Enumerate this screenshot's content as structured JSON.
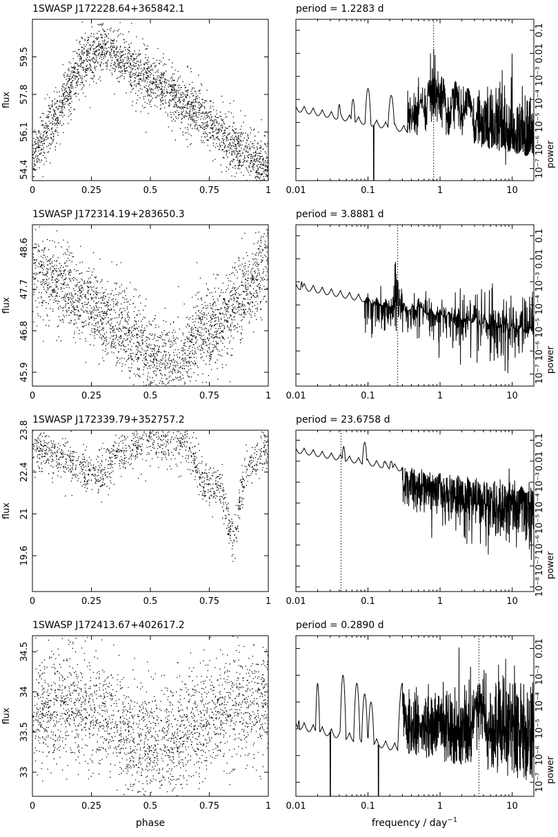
{
  "figure": {
    "xlabel_left": "phase",
    "xlabel_right_main": "frequency / day",
    "xlabel_right_sup": "−1"
  },
  "chart_data": [
    {
      "type": "scatter",
      "title": "1SWASP J172228.64+365842.1",
      "xlabel": "phase",
      "ylabel": "flux",
      "xlim": [
        0,
        1
      ],
      "ylim": [
        53.9,
        61.2
      ],
      "xticks": [
        "0",
        "0.25",
        "0.5",
        "0.75",
        "1"
      ],
      "yticks": [
        54.4,
        56.1,
        57.8,
        59.5
      ],
      "ytick_labels": [
        "54.4",
        "56.1",
        "57.8",
        "59.5"
      ],
      "profile": [
        [
          0,
          54.9
        ],
        [
          0.05,
          55.9
        ],
        [
          0.12,
          57.3
        ],
        [
          0.2,
          59.1
        ],
        [
          0.3,
          60.0
        ],
        [
          0.4,
          59.2
        ],
        [
          0.55,
          58.1
        ],
        [
          0.7,
          57.0
        ],
        [
          0.85,
          55.5
        ],
        [
          1.0,
          54.5
        ]
      ],
      "scatter_sd": 0.6,
      "n_points": 2600
    },
    {
      "type": "line",
      "title": "period =    1.2283  d",
      "xlabel": "frequency / day−1",
      "ylabel": "power",
      "xscale": "log",
      "yscale": "log",
      "xlim": [
        0.01,
        20
      ],
      "ylim": [
        3e-08,
        0.3
      ],
      "xticks": [
        "0.01",
        "0.1",
        "1",
        "10"
      ],
      "yticks": [
        1e-07,
        1e-06,
        1e-05,
        0.0001,
        0.001,
        0.01,
        0.1
      ],
      "ytick_labels": [
        "10⁻⁷",
        "10⁻⁶",
        "10⁻⁵",
        "10⁻⁴",
        "10⁻³",
        "0.01",
        "0.1"
      ],
      "peak_frequency": 0.8141,
      "peaks": [
        [
          0.04,
          6e-05
        ],
        [
          0.062,
          0.0001
        ],
        [
          0.1,
          0.0003
        ],
        [
          0.21,
          0.00015
        ],
        [
          0.55,
          0.0001
        ],
        [
          0.8141,
          0.2
        ],
        [
          1.07,
          0.001
        ],
        [
          1.63,
          0.0006
        ],
        [
          2.44,
          0.0003
        ]
      ],
      "noise": {
        "start": 0.35,
        "level_low": 2e-05,
        "level_high": 3e-06,
        "sd": 0.8
      },
      "dips": [
        0.12
      ]
    },
    {
      "type": "scatter",
      "title": "1SWASP J172314.19+283650.3",
      "xlabel": "phase",
      "ylabel": "flux",
      "xlim": [
        0,
        1
      ],
      "ylim": [
        45.6,
        49.1
      ],
      "xticks": [
        "0",
        "0.25",
        "0.5",
        "0.75",
        "1"
      ],
      "yticks": [
        45.9,
        46.8,
        47.7,
        48.6
      ],
      "ytick_labels": [
        "45.9",
        "46.8",
        "47.7",
        "48.6"
      ],
      "profile": [
        [
          0,
          48.1
        ],
        [
          0.15,
          47.7
        ],
        [
          0.3,
          47.1
        ],
        [
          0.45,
          46.5
        ],
        [
          0.55,
          46.1
        ],
        [
          0.62,
          46.0
        ],
        [
          0.7,
          46.7
        ],
        [
          0.8,
          47.0
        ],
        [
          0.9,
          47.6
        ],
        [
          1.0,
          48.3
        ]
      ],
      "scatter_sd": 0.45,
      "n_points": 2600
    },
    {
      "type": "line",
      "title": "period =    3.8881  d",
      "xlabel": "frequency / day−1",
      "ylabel": "power",
      "xscale": "log",
      "yscale": "log",
      "xlim": [
        0.01,
        20
      ],
      "ylim": [
        3e-08,
        0.3
      ],
      "xticks": [
        "0.01",
        "0.1",
        "1",
        "10"
      ],
      "yticks": [
        1e-07,
        1e-06,
        1e-05,
        0.0001,
        0.001,
        0.01,
        0.1
      ],
      "ytick_labels": [
        "10⁻⁷",
        "10⁻⁶",
        "10⁻⁵",
        "10⁻⁴",
        "10⁻³",
        "0.01",
        "0.1"
      ],
      "peak_frequency": 0.2572,
      "peaks": [
        [
          0.012,
          0.001
        ],
        [
          0.02,
          0.00015
        ],
        [
          0.03,
          0.0001
        ],
        [
          0.06,
          0.0002
        ],
        [
          0.075,
          0.0002
        ],
        [
          0.2572,
          0.1
        ],
        [
          0.51,
          0.0002
        ]
      ],
      "noise": {
        "start": 0.09,
        "level_low": 1e-05,
        "level_high": 3e-06,
        "sd": 0.8
      },
      "dips": []
    },
    {
      "type": "scatter",
      "title": "1SWASP J172339.79+352757.2",
      "xlabel": "phase",
      "ylabel": "flux",
      "xlim": [
        0,
        1
      ],
      "ylim": [
        18.4,
        23.8
      ],
      "xticks": [
        "0",
        "0.25",
        "0.5",
        "0.75",
        "1"
      ],
      "yticks": [
        19.6,
        21,
        22.4,
        23.8
      ],
      "ytick_labels": [
        "19.6",
        "21",
        "22.4",
        "23.8"
      ],
      "profile": [
        [
          0,
          23.2
        ],
        [
          0.1,
          23.0
        ],
        [
          0.2,
          22.6
        ],
        [
          0.3,
          22.4
        ],
        [
          0.35,
          23.0
        ],
        [
          0.5,
          23.5
        ],
        [
          0.65,
          23.4
        ],
        [
          0.72,
          22.0
        ],
        [
          0.8,
          21.8
        ],
        [
          0.85,
          20.0
        ],
        [
          0.9,
          22.5
        ],
        [
          1.0,
          23.2
        ]
      ],
      "scatter_sd": 0.35,
      "n_points": 1400
    },
    {
      "type": "line",
      "title": "period =   23.6758  d",
      "xlabel": "frequency / day−1",
      "ylabel": "power",
      "xscale": "log",
      "yscale": "log",
      "xlim": [
        0.01,
        20
      ],
      "ylim": [
        6e-09,
        0.3
      ],
      "xticks": [
        "0.01",
        "0.1",
        "1",
        "10"
      ],
      "yticks": [
        1e-08,
        1e-07,
        1e-06,
        1e-05,
        0.0001,
        0.001,
        0.01,
        0.1
      ],
      "ytick_labels": [
        "10⁻⁸",
        "10⁻⁷",
        "10⁻⁶",
        "10⁻⁵",
        "10⁻⁴",
        "10⁻³",
        "0.01",
        "0.1"
      ],
      "peak_frequency": 0.04224,
      "peaks": [
        [
          0.046,
          0.05
        ],
        [
          0.09,
          0.08
        ],
        [
          0.13,
          0.01
        ],
        [
          0.17,
          0.01
        ],
        [
          0.21,
          0.01
        ],
        [
          0.25,
          0.005
        ],
        [
          0.3,
          0.005
        ]
      ],
      "noise": {
        "start": 0.3,
        "level_low": 5e-05,
        "level_high": 3e-06,
        "sd": 0.8
      },
      "dips": []
    },
    {
      "type": "scatter",
      "title": "1SWASP J172413.67+402617.2",
      "xlabel": "phase",
      "ylabel": "flux",
      "xlim": [
        0,
        1
      ],
      "ylim": [
        32.7,
        34.7
      ],
      "xticks": [
        "0",
        "0.25",
        "0.5",
        "0.75",
        "1"
      ],
      "yticks": [
        33,
        33.5,
        34,
        34.5
      ],
      "ytick_labels": [
        "33",
        "33.5",
        "34",
        "34.5"
      ],
      "profile": [
        [
          0,
          33.8
        ],
        [
          0.15,
          33.85
        ],
        [
          0.3,
          33.7
        ],
        [
          0.45,
          33.4
        ],
        [
          0.55,
          33.3
        ],
        [
          0.65,
          33.5
        ],
        [
          0.8,
          33.75
        ],
        [
          1.0,
          33.9
        ]
      ],
      "scatter_sd": 0.35,
      "n_points": 2400
    },
    {
      "type": "line",
      "title": "period =    0.2890  d",
      "xlabel": "frequency / day−1",
      "ylabel": "power",
      "xscale": "log",
      "yscale": "log",
      "xlim": [
        0.01,
        20
      ],
      "ylim": [
        3e-08,
        0.03
      ],
      "xticks": [
        "0.01",
        "0.1",
        "1",
        "10"
      ],
      "yticks": [
        1e-07,
        1e-06,
        1e-05,
        0.0001,
        0.001,
        0.01
      ],
      "ytick_labels": [
        "10⁻⁷",
        "10⁻⁶",
        "10⁻⁵",
        "10⁻⁴",
        "10⁻³",
        "0.01"
      ],
      "peak_frequency": 3.46,
      "peaks": [
        [
          0.011,
          2e-05
        ],
        [
          0.02,
          0.0005
        ],
        [
          0.045,
          0.001
        ],
        [
          0.07,
          0.0005
        ],
        [
          0.09,
          0.0002
        ],
        [
          0.11,
          0.0001
        ],
        [
          0.3,
          0.0005
        ],
        [
          3.46,
          0.0005
        ]
      ],
      "noise": {
        "start": 0.3,
        "level_low": 1e-05,
        "level_high": 1e-05,
        "sd": 0.9
      },
      "dips": [
        0.03,
        0.14
      ]
    }
  ]
}
